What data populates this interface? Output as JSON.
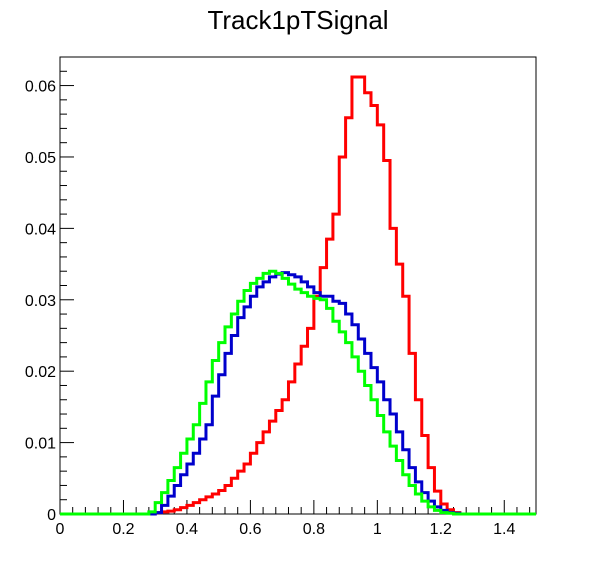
{
  "chart_data": {
    "type": "line",
    "title": "Track1pTSignal",
    "xlabel": "",
    "ylabel": "",
    "xlim": [
      0,
      1.5
    ],
    "ylim": [
      0,
      0.064
    ],
    "bin_width": 0.02,
    "grid": false,
    "x_ticks": [
      0,
      0.2,
      0.4,
      0.6,
      0.8,
      1,
      1.2,
      1.4
    ],
    "x_tick_labels": [
      "0",
      "0.2",
      "0.4",
      "0.6",
      "0.8",
      "1",
      "1.2",
      "1.4"
    ],
    "y_ticks": [
      0,
      0.01,
      0.02,
      0.03,
      0.04,
      0.05,
      0.06
    ],
    "y_tick_labels": [
      "0",
      "0.01",
      "0.02",
      "0.03",
      "0.04",
      "0.05",
      "0.06"
    ],
    "series": [
      {
        "color": "#ff0000",
        "values": [
          0,
          0,
          0,
          0,
          0,
          0,
          0,
          0,
          0,
          0,
          0,
          0,
          0,
          0,
          0,
          0.0002,
          0.0003,
          0.0004,
          0.0006,
          0.0009,
          0.0012,
          0.0016,
          0.002,
          0.0024,
          0.0028,
          0.0033,
          0.004,
          0.005,
          0.006,
          0.007,
          0.0085,
          0.01,
          0.0115,
          0.013,
          0.0145,
          0.016,
          0.0185,
          0.021,
          0.0235,
          0.026,
          0.0305,
          0.0345,
          0.0385,
          0.042,
          0.05,
          0.0555,
          0.0612,
          0.0612,
          0.059,
          0.0572,
          0.0545,
          0.0495,
          0.04,
          0.035,
          0.0305,
          0.0225,
          0.016,
          0.011,
          0.0065,
          0.0032,
          0.0014,
          0.0006,
          0.0002,
          0,
          0,
          0,
          0,
          0,
          0,
          0,
          0,
          0,
          0,
          0,
          0
        ]
      },
      {
        "color": "#0000cc",
        "values": [
          0,
          0,
          0,
          0,
          0,
          0,
          0,
          0,
          0,
          0,
          0,
          0,
          0,
          0,
          0,
          0.0002,
          0.0012,
          0.0025,
          0.004,
          0.0055,
          0.007,
          0.0085,
          0.0105,
          0.0125,
          0.0165,
          0.0195,
          0.0225,
          0.025,
          0.0275,
          0.029,
          0.0305,
          0.0318,
          0.0325,
          0.0332,
          0.0336,
          0.0338,
          0.0335,
          0.0332,
          0.0325,
          0.0318,
          0.031,
          0.0305,
          0.0305,
          0.0298,
          0.0295,
          0.028,
          0.0265,
          0.0245,
          0.0225,
          0.0205,
          0.0185,
          0.016,
          0.014,
          0.0115,
          0.009,
          0.0065,
          0.0045,
          0.003,
          0.0018,
          0.001,
          0.0005,
          0.0002,
          0.0001,
          0,
          0,
          0,
          0,
          0,
          0,
          0,
          0,
          0,
          0,
          0,
          0
        ]
      },
      {
        "color": "#00ff00",
        "values": [
          0,
          0,
          0,
          0,
          0,
          0,
          0,
          0,
          0,
          0,
          0,
          0,
          0,
          0,
          0.0003,
          0.0016,
          0.003,
          0.0047,
          0.0065,
          0.0085,
          0.0105,
          0.0125,
          0.0155,
          0.0185,
          0.0215,
          0.024,
          0.0262,
          0.028,
          0.0298,
          0.0313,
          0.0323,
          0.033,
          0.0337,
          0.034,
          0.0337,
          0.033,
          0.0322,
          0.0315,
          0.031,
          0.0305,
          0.0302,
          0.03,
          0.0288,
          0.027,
          0.0255,
          0.024,
          0.022,
          0.02,
          0.018,
          0.016,
          0.0138,
          0.0115,
          0.0095,
          0.0075,
          0.0055,
          0.004,
          0.0028,
          0.0018,
          0.001,
          0.0005,
          0.0002,
          0.0001,
          0,
          0,
          0,
          0,
          0,
          0,
          0,
          0,
          0,
          0,
          0,
          0,
          0
        ]
      }
    ]
  }
}
